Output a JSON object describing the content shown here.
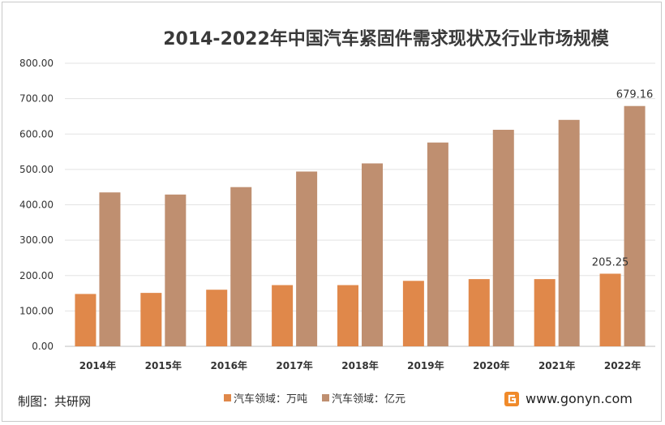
{
  "chart_data": {
    "type": "bar",
    "title": "2014-2022年中国汽车紧固件需求现状及行业市场规模",
    "categories": [
      "2014年",
      "2015年",
      "2016年",
      "2017年",
      "2018年",
      "2019年",
      "2020年",
      "2021年",
      "2022年"
    ],
    "series": [
      {
        "name": "汽车领域：万吨",
        "color": "#e0884a",
        "values": [
          148,
          151,
          160,
          173,
          173,
          185,
          190,
          190,
          205.25
        ]
      },
      {
        "name": "汽车领域：亿元",
        "color": "#bf8f70",
        "values": [
          435,
          429,
          450,
          494,
          517,
          576,
          612,
          640,
          679.16
        ]
      }
    ],
    "data_labels": [
      {
        "series": 0,
        "index": 8,
        "text": "205.25"
      },
      {
        "series": 1,
        "index": 8,
        "text": "679.16"
      }
    ],
    "yticks": [
      "0.00",
      "100.00",
      "200.00",
      "300.00",
      "400.00",
      "500.00",
      "600.00",
      "700.00",
      "800.00"
    ],
    "ylim": [
      0,
      800
    ],
    "grid": true,
    "legend_position": "bottom"
  },
  "footer": {
    "source": "制图：共研网",
    "brand": "www.gonyn.com"
  }
}
